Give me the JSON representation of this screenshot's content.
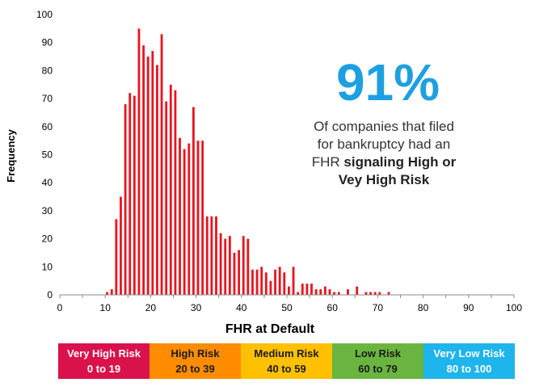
{
  "callout": {
    "big": "91%",
    "line1": "Of companies that filed",
    "line2": "for bankruptcy had an",
    "line3_prefix": "FHR ",
    "line3_bold": "signaling High or",
    "line4_bold": "Vey High Risk"
  },
  "risk_bands": [
    {
      "label": "Very High Risk",
      "range": "0 to 19",
      "color": "#d9124b",
      "text_color": "#ffffff"
    },
    {
      "label": "High Risk",
      "range": "20 to 39",
      "color": "#ff8c00",
      "text_color": "#1a1a1a"
    },
    {
      "label": "Medium Risk",
      "range": "40 to 59",
      "color": "#ffc000",
      "text_color": "#1a1a1a"
    },
    {
      "label": "Low Risk",
      "range": "60 to 79",
      "color": "#6ab540",
      "text_color": "#1a1a1a"
    },
    {
      "label": "Very Low Risk",
      "range": "80 to 100",
      "color": "#1eb4ec",
      "text_color": "#ffffff"
    }
  ],
  "chart_data": {
    "type": "bar",
    "title": "",
    "xlabel": "FHR at Default",
    "ylabel": "Frequency",
    "xlim": [
      0,
      100
    ],
    "ylim": [
      0,
      100
    ],
    "xticks": [
      0,
      10,
      20,
      30,
      40,
      50,
      60,
      70,
      80,
      90,
      100
    ],
    "yticks": [
      0,
      10,
      20,
      30,
      40,
      50,
      60,
      70,
      80,
      90,
      100
    ],
    "bar_color": "#e8141e",
    "grid": false,
    "x": [
      10,
      11,
      12,
      13,
      14,
      15,
      16,
      17,
      18,
      19,
      20,
      21,
      22,
      23,
      24,
      25,
      26,
      27,
      28,
      29,
      30,
      31,
      32,
      33,
      34,
      35,
      36,
      37,
      38,
      39,
      40,
      41,
      42,
      43,
      44,
      45,
      46,
      47,
      48,
      49,
      50,
      51,
      52,
      53,
      54,
      55,
      56,
      57,
      58,
      59,
      60,
      61,
      62,
      63,
      64,
      65,
      66,
      67,
      68,
      69,
      70,
      71,
      72,
      73
    ],
    "values": [
      1,
      2,
      27,
      35,
      68,
      72,
      71,
      95,
      89,
      85,
      87,
      82,
      93,
      69,
      75,
      73,
      56,
      52,
      54,
      67,
      55,
      55,
      28,
      28,
      28,
      22,
      20,
      21,
      15,
      16,
      21,
      20,
      9,
      9,
      10,
      8,
      5,
      9,
      10,
      8,
      3,
      10,
      1,
      4,
      4,
      4,
      2,
      2,
      3,
      2,
      1,
      1,
      0,
      2,
      0,
      3,
      0,
      1,
      1,
      1,
      1,
      0,
      1,
      0
    ]
  }
}
